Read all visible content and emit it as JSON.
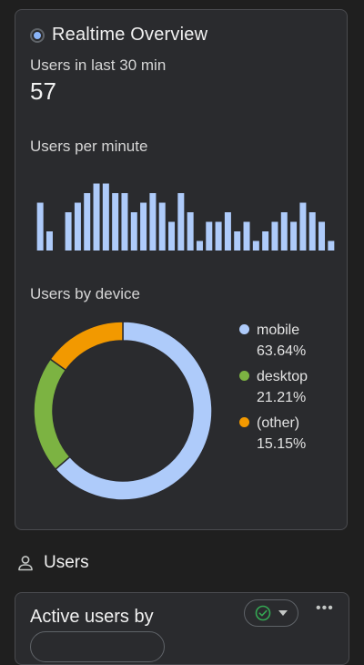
{
  "realtime": {
    "title": "Realtime Overview",
    "users_label": "Users in last 30 min",
    "users_value": "57",
    "per_minute_label": "Users per minute",
    "device_label": "Users by device"
  },
  "colors": {
    "mobile": "#aecbfa",
    "desktop": "#7cb342",
    "other": "#f29900",
    "bar": "#aecbfa"
  },
  "chart_data": [
    {
      "type": "bar",
      "title": "Users per minute",
      "values": [
        5,
        2,
        0,
        4,
        5,
        6,
        7,
        7,
        6,
        6,
        4,
        5,
        6,
        5,
        3,
        6,
        4,
        1,
        3,
        3,
        4,
        2,
        3,
        1,
        2,
        3,
        4,
        3,
        5,
        4,
        3,
        1
      ],
      "ylim": [
        0,
        8
      ],
      "axes_visible": false
    },
    {
      "type": "pie",
      "title": "Users by device",
      "labels": [
        "mobile",
        "desktop",
        "(other)"
      ],
      "values": [
        63.64,
        21.21,
        15.15
      ],
      "value_labels": [
        "63.64%",
        "21.21%",
        "15.15%"
      ],
      "donut": true,
      "legend_position": "right"
    }
  ],
  "users_section": {
    "title": "Users",
    "icon": "person-icon"
  },
  "active_users_card": {
    "title": "Active users by",
    "check_icon": "check-circle-icon",
    "menu_icon": "more-horizontal-icon",
    "more_glyph": "•••"
  }
}
